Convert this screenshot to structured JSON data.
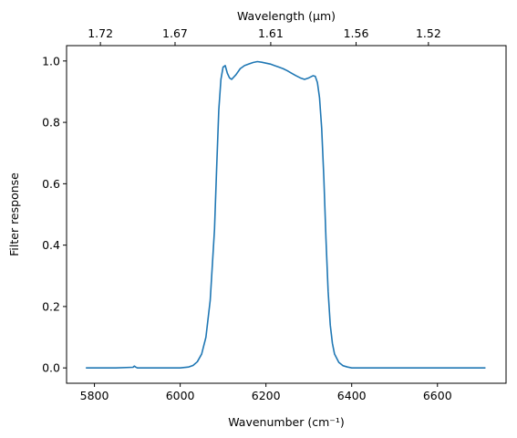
{
  "chart_data": {
    "type": "line",
    "title": "",
    "xlabel": "Wavenumber (cm⁻¹)",
    "ylabel": "Filter response",
    "top_xlabel": "Wavelength (μm)",
    "xlim": [
      5735,
      6760
    ],
    "ylim": [
      -0.05,
      1.05
    ],
    "grid": false,
    "legend": "none",
    "x_ticks": [
      5800,
      6000,
      6200,
      6400,
      6600
    ],
    "x_tick_labels": [
      "5800",
      "6000",
      "6200",
      "6400",
      "6600"
    ],
    "y_ticks": [
      0.0,
      0.2,
      0.4,
      0.6,
      0.8,
      1.0
    ],
    "y_tick_labels": [
      "0.0",
      "0.2",
      "0.4",
      "0.6",
      "0.8",
      "1.0"
    ],
    "top_ticks": [
      5813.95,
      5988.02,
      6211.18,
      6410.26,
      6578.95
    ],
    "top_tick_labels": [
      "1.72",
      "1.67",
      "1.61",
      "1.56",
      "1.52"
    ],
    "series": [
      {
        "color": "#1f77b4",
        "x": [
          5780,
          5850,
          5890,
          5893,
          5896,
          5900,
          5950,
          6000,
          6020,
          6030,
          6040,
          6050,
          6060,
          6070,
          6080,
          6085,
          6090,
          6095,
          6100,
          6105,
          6110,
          6115,
          6120,
          6130,
          6140,
          6150,
          6160,
          6170,
          6180,
          6190,
          6200,
          6210,
          6220,
          6230,
          6240,
          6250,
          6260,
          6270,
          6280,
          6290,
          6300,
          6310,
          6315,
          6320,
          6325,
          6330,
          6335,
          6340,
          6345,
          6350,
          6355,
          6360,
          6370,
          6380,
          6390,
          6400,
          6450,
          6500,
          6550,
          6600,
          6650,
          6712
        ],
        "y": [
          0.0,
          0.0,
          0.002,
          0.006,
          0.003,
          0.0,
          0.0,
          0.0,
          0.003,
          0.008,
          0.02,
          0.045,
          0.1,
          0.22,
          0.45,
          0.65,
          0.84,
          0.94,
          0.98,
          0.985,
          0.96,
          0.945,
          0.94,
          0.955,
          0.975,
          0.985,
          0.99,
          0.995,
          0.998,
          0.996,
          0.993,
          0.99,
          0.985,
          0.98,
          0.975,
          0.968,
          0.96,
          0.952,
          0.945,
          0.94,
          0.945,
          0.952,
          0.95,
          0.93,
          0.88,
          0.78,
          0.62,
          0.42,
          0.25,
          0.14,
          0.08,
          0.045,
          0.018,
          0.007,
          0.003,
          0.0,
          0.0,
          0.0,
          0.0,
          0.0,
          0.0,
          0.0
        ]
      }
    ]
  }
}
